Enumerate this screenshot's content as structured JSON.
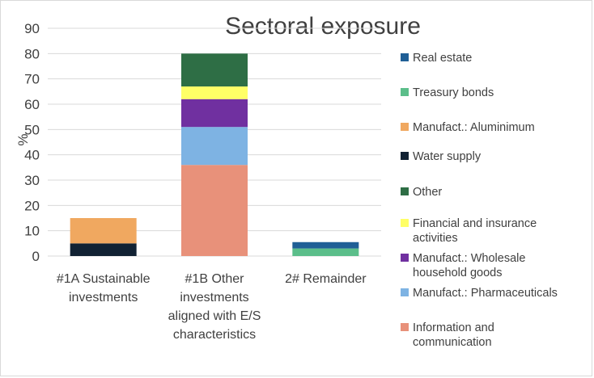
{
  "chart_data": {
    "type": "bar",
    "stacked": true,
    "title": "Sectoral exposure",
    "xlabel": "",
    "ylabel": "%",
    "ylim": [
      0,
      90
    ],
    "yticks": [
      0,
      10,
      20,
      30,
      40,
      50,
      60,
      70,
      80,
      90
    ],
    "grid": true,
    "legend_position": "right",
    "categories": [
      [
        "#1A Sustainable",
        "investments"
      ],
      [
        "#1B Other",
        "investments",
        "aligned with E/S",
        "characteristics"
      ],
      [
        "2# Remainder"
      ]
    ],
    "series": [
      {
        "name": "Information and communication",
        "legend_lines": [
          "Information and",
          "communication"
        ],
        "color": "#E8917A",
        "values": [
          0,
          36,
          0
        ]
      },
      {
        "name": "Manufact.: Pharmaceuticals",
        "legend_lines": [
          "Manufact.: Pharmaceuticals"
        ],
        "color": "#7EB3E3",
        "values": [
          0,
          15,
          0
        ]
      },
      {
        "name": "Manufact.: Wholesale household goods",
        "legend_lines": [
          "Manufact.: Wholesale",
          "household goods"
        ],
        "color": "#7030A0",
        "values": [
          0,
          11,
          0
        ]
      },
      {
        "name": "Financial and insurance activities",
        "legend_lines": [
          "Financial and insurance",
          "activities"
        ],
        "color": "#FFFF66",
        "values": [
          0,
          5,
          0
        ]
      },
      {
        "name": "Other",
        "legend_lines": [
          "Other"
        ],
        "color": "#2E6E45",
        "values": [
          0,
          13,
          0
        ]
      },
      {
        "name": "Water supply",
        "legend_lines": [
          "Water supply"
        ],
        "color": "#112233",
        "values": [
          5,
          0,
          0
        ]
      },
      {
        "name": "Manufact.: Aluminimum",
        "legend_lines": [
          "Manufact.: Aluminimum"
        ],
        "color": "#F0A860",
        "values": [
          10,
          0,
          0
        ]
      },
      {
        "name": "Treasury bonds",
        "legend_lines": [
          "Treasury bonds"
        ],
        "color": "#5BBE8A",
        "values": [
          0,
          0,
          3
        ]
      },
      {
        "name": "Real estate",
        "legend_lines": [
          "Real estate"
        ],
        "color": "#1F5F96",
        "values": [
          0,
          0,
          2.5
        ]
      }
    ],
    "legend_order": [
      "Real estate",
      "Treasury bonds",
      "Manufact.: Aluminimum",
      "Water supply",
      "Other",
      "Financial and insurance activities",
      "Manufact.: Wholesale household goods",
      "Manufact.: Pharmaceuticals",
      "Information and communication"
    ]
  }
}
